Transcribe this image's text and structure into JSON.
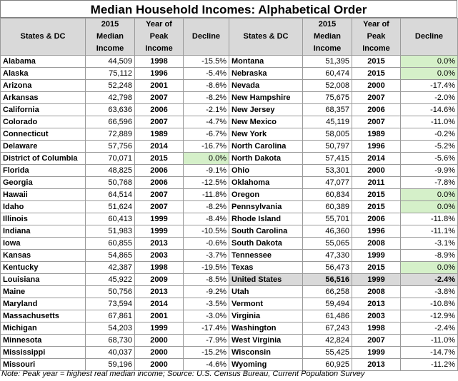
{
  "title": "Median Household Incomes: Alphabetical Order",
  "headers": {
    "state": "States & DC",
    "income": "2015 Median Income",
    "year": "Year of Peak Income",
    "decline": "Decline"
  },
  "left": [
    {
      "state": "Alabama",
      "income": "44,509",
      "year": "1998",
      "decline": "-15.5%"
    },
    {
      "state": "Alaska",
      "income": "75,112",
      "year": "1996",
      "decline": "-5.4%"
    },
    {
      "state": "Arizona",
      "income": "52,248",
      "year": "2001",
      "decline": "-8.6%"
    },
    {
      "state": "Arkansas",
      "income": "42,798",
      "year": "2007",
      "decline": "-8.2%"
    },
    {
      "state": "California",
      "income": "63,636",
      "year": "2006",
      "decline": "-2.1%"
    },
    {
      "state": "Colorado",
      "income": "66,596",
      "year": "2007",
      "decline": "-4.7%"
    },
    {
      "state": "Connecticut",
      "income": "72,889",
      "year": "1989",
      "decline": "-6.7%"
    },
    {
      "state": "Delaware",
      "income": "57,756",
      "year": "2014",
      "decline": "-16.7%"
    },
    {
      "state": "District of Columbia",
      "income": "70,071",
      "year": "2015",
      "decline": "0.0%",
      "highlight": true
    },
    {
      "state": "Florida",
      "income": "48,825",
      "year": "2006",
      "decline": "-9.1%"
    },
    {
      "state": "Georgia",
      "income": "50,768",
      "year": "2006",
      "decline": "-12.5%"
    },
    {
      "state": "Hawaii",
      "income": "64,514",
      "year": "2007",
      "decline": "-11.8%"
    },
    {
      "state": "Idaho",
      "income": "51,624",
      "year": "2007",
      "decline": "-8.2%"
    },
    {
      "state": "Illinois",
      "income": "60,413",
      "year": "1999",
      "decline": "-8.4%"
    },
    {
      "state": "Indiana",
      "income": "51,983",
      "year": "1999",
      "decline": "-10.5%"
    },
    {
      "state": "Iowa",
      "income": "60,855",
      "year": "2013",
      "decline": "-0.6%"
    },
    {
      "state": "Kansas",
      "income": "54,865",
      "year": "2003",
      "decline": "-3.7%"
    },
    {
      "state": "Kentucky",
      "income": "42,387",
      "year": "1998",
      "decline": "-19.5%"
    },
    {
      "state": "Louisiana",
      "income": "45,922",
      "year": "2009",
      "decline": "-8.5%"
    },
    {
      "state": "Maine",
      "income": "50,756",
      "year": "2013",
      "decline": "-9.2%"
    },
    {
      "state": "Maryland",
      "income": "73,594",
      "year": "2014",
      "decline": "-3.5%"
    },
    {
      "state": "Massachusetts",
      "income": "67,861",
      "year": "2001",
      "decline": "-3.0%"
    },
    {
      "state": "Michigan",
      "income": "54,203",
      "year": "1999",
      "decline": "-17.4%"
    },
    {
      "state": "Minnesota",
      "income": "68,730",
      "year": "2000",
      "decline": "-7.9%"
    },
    {
      "state": "Mississippi",
      "income": "40,037",
      "year": "2000",
      "decline": "-15.2%"
    },
    {
      "state": "Missouri",
      "income": "59,196",
      "year": "2000",
      "decline": "-4.6%"
    }
  ],
  "right": [
    {
      "state": "Montana",
      "income": "51,395",
      "year": "2015",
      "decline": "0.0%",
      "highlight": true
    },
    {
      "state": "Nebraska",
      "income": "60,474",
      "year": "2015",
      "decline": "0.0%",
      "highlight": true
    },
    {
      "state": "Nevada",
      "income": "52,008",
      "year": "2000",
      "decline": "-17.4%"
    },
    {
      "state": "New Hampshire",
      "income": "75,675",
      "year": "2007",
      "decline": "-2.0%"
    },
    {
      "state": "New Jersey",
      "income": "68,357",
      "year": "2006",
      "decline": "-14.6%"
    },
    {
      "state": "New Mexico",
      "income": "45,119",
      "year": "2007",
      "decline": "-11.0%"
    },
    {
      "state": "New York",
      "income": "58,005",
      "year": "1989",
      "decline": "-0.2%"
    },
    {
      "state": "North Carolina",
      "income": "50,797",
      "year": "1996",
      "decline": "-5.2%"
    },
    {
      "state": "North Dakota",
      "income": "57,415",
      "year": "2014",
      "decline": "-5.6%"
    },
    {
      "state": "Ohio",
      "income": "53,301",
      "year": "2000",
      "decline": "-9.9%"
    },
    {
      "state": "Oklahoma",
      "income": "47,077",
      "year": "2011",
      "decline": "-7.8%"
    },
    {
      "state": "Oregon",
      "income": "60,834",
      "year": "2015",
      "decline": "0.0%",
      "highlight": true
    },
    {
      "state": "Pennsylvania",
      "income": "60,389",
      "year": "2015",
      "decline": "0.0%",
      "highlight": true
    },
    {
      "state": "Rhode Island",
      "income": "55,701",
      "year": "2006",
      "decline": "-11.8%"
    },
    {
      "state": "South Carolina",
      "income": "46,360",
      "year": "1996",
      "decline": "-11.1%"
    },
    {
      "state": "South Dakota",
      "income": "55,065",
      "year": "2008",
      "decline": "-3.1%"
    },
    {
      "state": "Tennessee",
      "income": "47,330",
      "year": "1999",
      "decline": "-8.9%"
    },
    {
      "state": "Texas",
      "income": "56,473",
      "year": "2015",
      "decline": "0.0%",
      "highlight": true
    },
    {
      "state": "United States",
      "income": "56,516",
      "year": "1999",
      "decline": "-2.4%",
      "us": true
    },
    {
      "state": "Utah",
      "income": "66,258",
      "year": "2008",
      "decline": "-3.8%"
    },
    {
      "state": "Vermont",
      "income": "59,494",
      "year": "2013",
      "decline": "-10.8%"
    },
    {
      "state": "Virginia",
      "income": "61,486",
      "year": "2003",
      "decline": "-12.9%"
    },
    {
      "state": "Washington",
      "income": "67,243",
      "year": "1998",
      "decline": "-2.4%"
    },
    {
      "state": "West Virginia",
      "income": "42,824",
      "year": "2007",
      "decline": "-11.0%"
    },
    {
      "state": "Wisconsin",
      "income": "55,425",
      "year": "1999",
      "decline": "-14.7%"
    },
    {
      "state": "Wyoming",
      "income": "60,925",
      "year": "2013",
      "decline": "-11.2%"
    }
  ],
  "footnote": "Note: Peak year = highest real median income; Source:  U.S. Census Bureau, Current Population Survey",
  "colors": {
    "highlight": "#d5f0c9",
    "header": "#d9d9d9",
    "us_row": "#d9d9d9"
  }
}
